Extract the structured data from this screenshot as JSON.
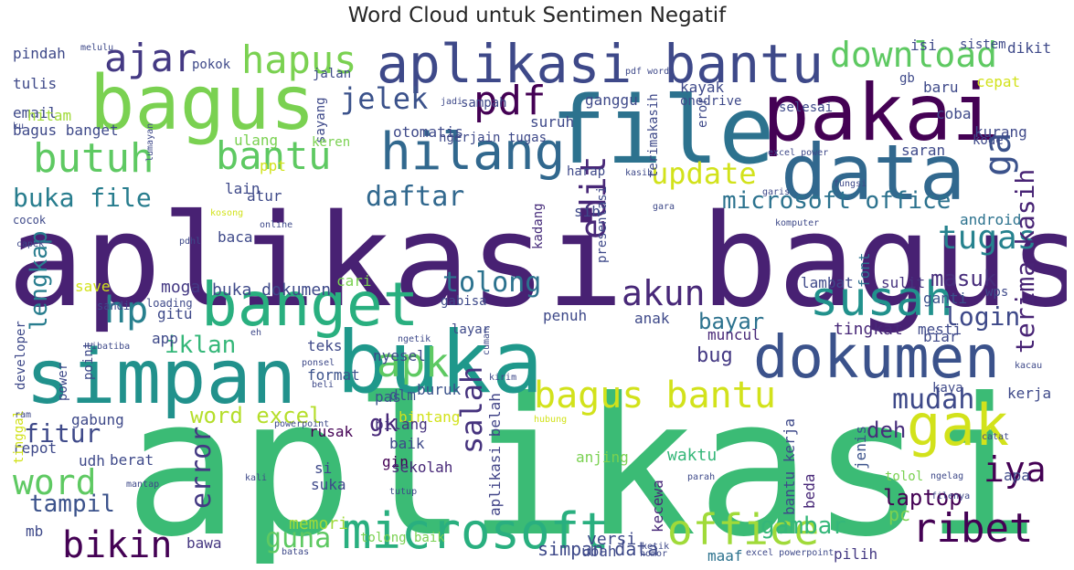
{
  "title": "Word Cloud untuk Sentimen Negatif",
  "words": [
    {
      "text": "aplikasi",
      "color": "#3bbb75"
    },
    {
      "text": "aplikasi bagus",
      "color": "#482173"
    },
    {
      "text": "buka",
      "color": "#1f988b"
    },
    {
      "text": "file",
      "color": "#2c728e"
    },
    {
      "text": "pakai",
      "color": "#440154"
    },
    {
      "text": "bagus",
      "color": "#7ad151"
    },
    {
      "text": "simpan",
      "color": "#21918c"
    },
    {
      "text": "data",
      "color": "#31688e"
    },
    {
      "text": "dokumen",
      "color": "#3b528b"
    },
    {
      "text": "banget",
      "color": "#29af7f"
    },
    {
      "text": "gak",
      "color": "#d2e21b"
    },
    {
      "text": "aplikasi bantu",
      "color": "#3e4989"
    },
    {
      "text": "microsoft",
      "color": "#29af7f"
    },
    {
      "text": "office",
      "color": "#a0da39"
    },
    {
      "text": "hilang",
      "color": "#31688e"
    },
    {
      "text": "susah",
      "color": "#21918c"
    },
    {
      "text": "bagus bantu",
      "color": "#d2e21b"
    },
    {
      "text": "ribet",
      "color": "#440154"
    },
    {
      "text": "hapus",
      "color": "#7ad151"
    },
    {
      "text": "butuh",
      "color": "#5ec962"
    },
    {
      "text": "apk",
      "color": "#5ec962"
    },
    {
      "text": "bantu",
      "color": "#5ec962"
    },
    {
      "text": "ajar",
      "color": "#443983"
    },
    {
      "text": "pdf",
      "color": "#440154"
    },
    {
      "text": "bikin",
      "color": "#440154"
    },
    {
      "text": "word",
      "color": "#5ec962"
    },
    {
      "text": "download",
      "color": "#5ec962"
    },
    {
      "text": "iya",
      "color": "#440154"
    },
    {
      "text": "hp",
      "color": "#27808e"
    },
    {
      "text": "akun",
      "color": "#482878"
    },
    {
      "text": "jelek",
      "color": "#3b528b"
    },
    {
      "text": "update",
      "color": "#d2e21b"
    },
    {
      "text": "tugas",
      "color": "#26828e"
    },
    {
      "text": "edit",
      "color": "#482878"
    },
    {
      "text": "ga",
      "color": "#3b528b"
    },
    {
      "text": "mudah",
      "color": "#3e4989"
    },
    {
      "text": "daftar",
      "color": "#31688e"
    },
    {
      "text": "terima kasih",
      "color": "#482475"
    },
    {
      "text": "tolong",
      "color": "#2c728e"
    },
    {
      "text": "error",
      "color": "#443983"
    },
    {
      "text": "salah",
      "color": "#46337e"
    },
    {
      "text": "guna",
      "color": "#5ec962"
    },
    {
      "text": "buka file",
      "color": "#287d8e"
    },
    {
      "text": "fitur",
      "color": "#3e4989"
    },
    {
      "text": "word excel",
      "color": "#b5de2b"
    },
    {
      "text": "lengkap",
      "color": "#287d8e"
    },
    {
      "text": "gambar",
      "color": "#35b779"
    },
    {
      "text": "login",
      "color": "#3e4989"
    },
    {
      "text": "iklan",
      "color": "#35b779"
    },
    {
      "text": "microsoft office",
      "color": "#2c728e"
    },
    {
      "text": "tampil",
      "color": "#3b528b"
    },
    {
      "text": "laptop",
      "color": "#440154"
    },
    {
      "text": "masuk",
      "color": "#472d7b"
    },
    {
      "text": "bayar",
      "color": "#2c728e"
    },
    {
      "text": "gk",
      "color": "#482878"
    },
    {
      "text": "deh",
      "color": "#472d7b"
    },
    {
      "text": "simpan data",
      "color": "#3e4989"
    },
    {
      "text": "tingkat",
      "color": "#482878"
    },
    {
      "text": "bug",
      "color": "#443983"
    },
    {
      "text": "pc",
      "color": "#7ad151"
    },
    {
      "text": "moga",
      "color": "#443983"
    },
    {
      "text": "buka dokumen",
      "color": "#3e4989"
    },
    {
      "text": "waktu",
      "color": "#35b779"
    },
    {
      "text": "memori",
      "color": "#a0da39"
    },
    {
      "text": "tolong baik",
      "color": "#7ad151"
    },
    {
      "text": "aplikasi belah",
      "color": "#414487"
    },
    {
      "text": "kecewa",
      "color": "#482878"
    },
    {
      "text": "bantu kerja",
      "color": "#3e4989"
    },
    {
      "text": "versi",
      "color": "#3e4989"
    },
    {
      "text": "ubah",
      "color": "#3e4989"
    },
    {
      "text": "maaf",
      "color": "#2c728e"
    },
    {
      "text": "pilih",
      "color": "#443983"
    },
    {
      "text": "mb",
      "color": "#3e4989"
    },
    {
      "text": "bawa",
      "color": "#453781"
    },
    {
      "text": "beda",
      "color": "#482878"
    },
    {
      "text": "jenis",
      "color": "#3b528b"
    },
    {
      "text": "tolol",
      "color": "#7ad151"
    },
    {
      "text": "kerja",
      "color": "#3e4989"
    },
    {
      "text": "apa",
      "color": "#3e4989"
    },
    {
      "text": "presentasi",
      "color": "#3e4989"
    },
    {
      "text": "kadang",
      "color": "#472d7b"
    },
    {
      "text": "android",
      "color": "#2c728e"
    },
    {
      "text": "ganti",
      "color": "#3b528b"
    },
    {
      "text": "sulit",
      "color": "#46337e"
    },
    {
      "text": "lambat",
      "color": "#3e4989"
    },
    {
      "text": "font",
      "color": "#2c728e"
    },
    {
      "text": "muncul",
      "color": "#482878"
    },
    {
      "text": "biar",
      "color": "#3e4989"
    },
    {
      "text": "mesti",
      "color": "#3e4989"
    },
    {
      "text": "nyesel",
      "color": "#3e4989"
    },
    {
      "text": "teks",
      "color": "#3e4989"
    },
    {
      "text": "format",
      "color": "#3b528b"
    },
    {
      "text": "buruk",
      "color": "#3b528b"
    },
    {
      "text": "pas",
      "color": "#3b528b"
    },
    {
      "text": "dlm",
      "color": "#3b528b"
    },
    {
      "text": "bintang",
      "color": "#d2e21b"
    },
    {
      "text": "bilang",
      "color": "#46337e"
    },
    {
      "text": "rusak",
      "color": "#440154"
    },
    {
      "text": "baik",
      "color": "#3e4989"
    },
    {
      "text": "gin",
      "color": "#440154"
    },
    {
      "text": "suka",
      "color": "#3e4989"
    },
    {
      "text": "si",
      "color": "#3e4989"
    },
    {
      "text": "sekolah",
      "color": "#482878"
    },
    {
      "text": "anjing",
      "color": "#7ad151"
    },
    {
      "text": "gabung",
      "color": "#3e4989"
    },
    {
      "text": "udh",
      "color": "#3e4989"
    },
    {
      "text": "berat",
      "color": "#3e4989"
    },
    {
      "text": "repot",
      "color": "#3e4989"
    },
    {
      "text": "tinggal",
      "color": "#d2e21b"
    },
    {
      "text": "developer",
      "color": "#3e4989"
    },
    {
      "text": "power",
      "color": "#3e4989"
    },
    {
      "text": "point",
      "color": "#3e4989"
    },
    {
      "text": "save",
      "color": "#d2e21b"
    },
    {
      "text": "cari",
      "color": "#7ad151"
    },
    {
      "text": "gabisa",
      "color": "#3e4989"
    },
    {
      "text": "penuh",
      "color": "#3e4989"
    },
    {
      "text": "anak",
      "color": "#3e4989"
    },
    {
      "text": "layar",
      "color": "#3e4989"
    },
    {
      "text": "gitu",
      "color": "#3e4989"
    },
    {
      "text": "app",
      "color": "#3e4989"
    },
    {
      "text": "baca",
      "color": "#3e4989"
    },
    {
      "text": "lain",
      "color": "#3e4989"
    },
    {
      "text": "atur",
      "color": "#3e4989"
    },
    {
      "text": "ppt",
      "color": "#d2e21b"
    },
    {
      "text": "harap",
      "color": "#3e4989"
    },
    {
      "text": "sih",
      "color": "#3e4989"
    },
    {
      "text": "suruh",
      "color": "#3e4989"
    },
    {
      "text": "otomatis",
      "color": "#3e4989"
    },
    {
      "text": "ngerjain tugas",
      "color": "#3e4989"
    },
    {
      "text": "sayang",
      "color": "#3e4989"
    },
    {
      "text": "keren",
      "color": "#7ad151"
    },
    {
      "text": "ulang",
      "color": "#7ad151"
    },
    {
      "text": "bagus banget",
      "color": "#3e4989"
    },
    {
      "text": "email",
      "color": "#3e4989"
    },
    {
      "text": "hitam",
      "color": "#a0da39"
    },
    {
      "text": "tulis",
      "color": "#3e4989"
    },
    {
      "text": "pindah",
      "color": "#3e4989"
    },
    {
      "text": "pokok",
      "color": "#3e4989"
    },
    {
      "text": "jalan",
      "color": "#3e4989"
    },
    {
      "text": "sampah",
      "color": "#3e4989"
    },
    {
      "text": "ganggu",
      "color": "#3e4989"
    },
    {
      "text": "kayak",
      "color": "#3e4989"
    },
    {
      "text": "onedrive",
      "color": "#3e4989"
    },
    {
      "text": "terimakasih",
      "color": "#3e4989"
    },
    {
      "text": "eror",
      "color": "#3e4989"
    },
    {
      "text": "selesai",
      "color": "#3e4989"
    },
    {
      "text": "gb",
      "color": "#3e4989"
    },
    {
      "text": "baru",
      "color": "#3e4989"
    },
    {
      "text": "cepat",
      "color": "#d2e21b"
    },
    {
      "text": "coba",
      "color": "#3e4989"
    },
    {
      "text": "kurang",
      "color": "#3e4989"
    },
    {
      "text": "saran",
      "color": "#3e4989"
    },
    {
      "text": "kode",
      "color": "#3e4989"
    },
    {
      "text": "isi",
      "color": "#3e4989"
    },
    {
      "text": "sistem",
      "color": "#3e4989"
    },
    {
      "text": "dikit",
      "color": "#3e4989"
    },
    {
      "text": "kaya",
      "color": "#3e4989"
    },
    {
      "text": "wps",
      "color": "#3e4989"
    },
    {
      "text": "melulu",
      "color": "#3e4989"
    },
    {
      "text": "jadi",
      "color": "#3e4989"
    },
    {
      "text": "pdf word",
      "color": "#3e4989"
    },
    {
      "text": "ku",
      "color": "#3e4989"
    },
    {
      "text": "lumayan",
      "color": "#3e4989"
    },
    {
      "text": "cocok",
      "color": "#3e4989"
    },
    {
      "text": "kosong",
      "color": "#d2e21b"
    },
    {
      "text": "online",
      "color": "#3e4989"
    },
    {
      "text": "pdhl",
      "color": "#3e4989"
    },
    {
      "text": "capek",
      "color": "#3e4989"
    },
    {
      "text": "sandi",
      "color": "#3e4989"
    },
    {
      "text": "loading",
      "color": "#3e4989"
    },
    {
      "text": "kasih",
      "color": "#3e4989"
    },
    {
      "text": "excel power",
      "color": "#3e4989"
    },
    {
      "text": "garis",
      "color": "#3e4989"
    },
    {
      "text": "fungsi",
      "color": "#3e4989"
    },
    {
      "text": "gara",
      "color": "#3e4989"
    },
    {
      "text": "komputer",
      "color": "#3e4989"
    },
    {
      "text": "eh",
      "color": "#3e4989"
    },
    {
      "text": "tibatiba",
      "color": "#3e4989"
    },
    {
      "text": "ponsel",
      "color": "#3e4989"
    },
    {
      "text": "beli",
      "color": "#3e4989"
    },
    {
      "text": "ngetik",
      "color": "#3e4989"
    },
    {
      "text": "cuman",
      "color": "#3e4989"
    },
    {
      "text": "kirim",
      "color": "#3e4989"
    },
    {
      "text": "hubung",
      "color": "#d2e21b"
    },
    {
      "text": "catat",
      "color": "#3e4989"
    },
    {
      "text": "kacau",
      "color": "#3e4989"
    },
    {
      "text": "ram",
      "color": "#3e4989"
    },
    {
      "text": "powerpoint",
      "color": "#3e4989"
    },
    {
      "text": "mantap",
      "color": "#3e4989"
    },
    {
      "text": "kali",
      "color": "#3e4989"
    },
    {
      "text": "tutup",
      "color": "#3e4989"
    },
    {
      "text": "parah",
      "color": "#3e4989"
    },
    {
      "text": "ngelag",
      "color": "#3e4989"
    },
    {
      "text": "filenya",
      "color": "#3e4989"
    },
    {
      "text": "ketik",
      "color": "#3e4989"
    },
    {
      "text": "batas",
      "color": "#3e4989"
    },
    {
      "text": "nomor",
      "color": "#3e4989"
    },
    {
      "text": "excel powerpoint",
      "color": "#3e4989"
    },
    {
      "text": "bawa laptop",
      "color": "#d2e21b"
    }
  ]
}
